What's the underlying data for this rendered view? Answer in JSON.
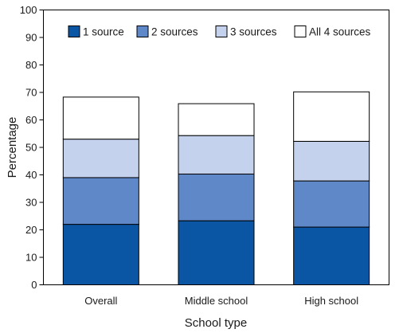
{
  "chart_data": {
    "type": "bar",
    "stacked": true,
    "title": "",
    "xlabel": "School type",
    "ylabel": "Percentage",
    "ylim": [
      0,
      100
    ],
    "yticks": [
      0,
      10,
      20,
      30,
      40,
      50,
      60,
      70,
      80,
      90,
      100
    ],
    "grid": false,
    "legend_position": "top",
    "categories": [
      "Overall",
      "Middle school",
      "High school"
    ],
    "series": [
      {
        "name": "1 source",
        "color": "#0b56a4",
        "values": [
          22,
          23.3,
          21
        ]
      },
      {
        "name": "2 sources",
        "color": "#5e88c8",
        "values": [
          17,
          17,
          16.8
        ]
      },
      {
        "name": "3 sources",
        "color": "#c5d2ee",
        "values": [
          14,
          14,
          14.4
        ]
      },
      {
        "name": "All 4 sources",
        "color": "#ffffff",
        "values": [
          15.3,
          11.6,
          18
        ]
      }
    ]
  }
}
